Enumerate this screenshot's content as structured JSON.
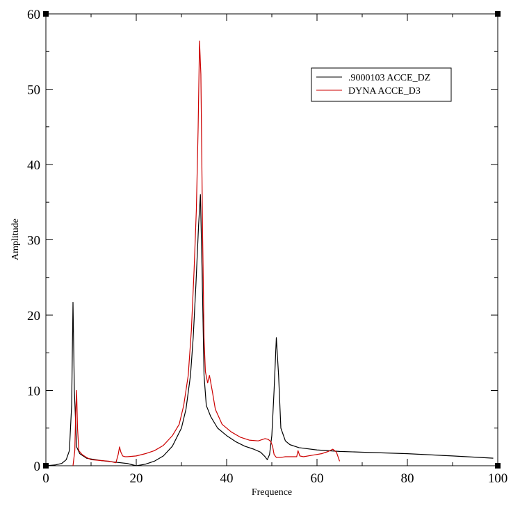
{
  "chart_data": {
    "type": "line",
    "title": "",
    "xlabel": "Frequence",
    "ylabel": "Amplitude",
    "xlim": [
      0,
      100
    ],
    "ylim": [
      0,
      60
    ],
    "xticks": [
      0,
      20,
      40,
      60,
      80,
      100
    ],
    "yticks": [
      0,
      10,
      20,
      30,
      40,
      50,
      60
    ],
    "grid": false,
    "legend_position": "top-right",
    "series": [
      {
        "name": ".9000103 ACCE_DZ",
        "color": "#000000",
        "x": [
          0,
          2,
          3.5,
          4.5,
          5.2,
          5.7,
          6,
          6.3,
          6.8,
          7.5,
          9,
          12,
          15,
          18,
          20,
          22,
          24,
          26,
          28,
          30,
          31,
          32,
          32.6,
          33.2,
          33.8,
          34.2,
          34.6,
          35,
          35.5,
          36.5,
          38,
          40,
          42,
          44,
          46,
          47.5,
          48.5,
          49,
          49.5,
          50,
          50.5,
          51,
          51.5,
          52,
          53,
          54,
          56,
          60,
          65,
          70,
          80,
          90,
          99
        ],
        "y": [
          0,
          0.1,
          0.3,
          0.8,
          2,
          8,
          21.7,
          10,
          2.5,
          1.6,
          1,
          0.7,
          0.5,
          0.3,
          0,
          0.2,
          0.6,
          1.3,
          2.6,
          5,
          7.5,
          12,
          17,
          24,
          32,
          36,
          25,
          12,
          8,
          6.5,
          5,
          4,
          3.2,
          2.6,
          2.2,
          1.8,
          1.2,
          0.8,
          1.5,
          4,
          10,
          17,
          12,
          5,
          3.3,
          2.8,
          2.4,
          2.1,
          1.9,
          1.8,
          1.6,
          1.3,
          1.0
        ]
      },
      {
        "name": "DYNA ACCE_D3",
        "color": "#cc0000",
        "x": [
          6,
          6.4,
          6.6,
          6.8,
          7,
          7.3,
          8,
          9,
          10,
          12,
          14,
          15.5,
          16,
          16.3,
          16.6,
          17,
          17.5,
          18,
          20,
          22,
          24,
          26,
          28,
          29.5,
          30.5,
          31.5,
          32.2,
          32.8,
          33.3,
          33.7,
          34,
          34.3,
          34.7,
          35,
          35.3,
          35.8,
          36.2,
          36.8,
          37.5,
          39,
          41,
          43,
          45,
          47,
          48.5,
          49.2,
          49.8,
          50.2,
          50.5,
          51,
          52,
          53,
          54,
          55.5,
          55.8,
          56.2,
          57,
          59,
          61,
          62.5,
          63.5,
          64.3,
          65
        ],
        "y": [
          0,
          2,
          7,
          10,
          5,
          2,
          1.5,
          1.1,
          0.8,
          0.7,
          0.6,
          0.4,
          1.5,
          2.5,
          1.8,
          1.3,
          1.2,
          1.2,
          1.3,
          1.6,
          2,
          2.7,
          4,
          5.5,
          8,
          12,
          18,
          26,
          34,
          45,
          56.4,
          52,
          30,
          17,
          12.5,
          11,
          12,
          10,
          7.5,
          5.5,
          4.5,
          3.8,
          3.4,
          3.3,
          3.6,
          3.5,
          3.2,
          2.5,
          1.5,
          1.1,
          1.1,
          1.2,
          1.2,
          1.2,
          2.0,
          1.3,
          1.2,
          1.4,
          1.6,
          1.9,
          2.2,
          1.8,
          0.6
        ]
      }
    ]
  }
}
